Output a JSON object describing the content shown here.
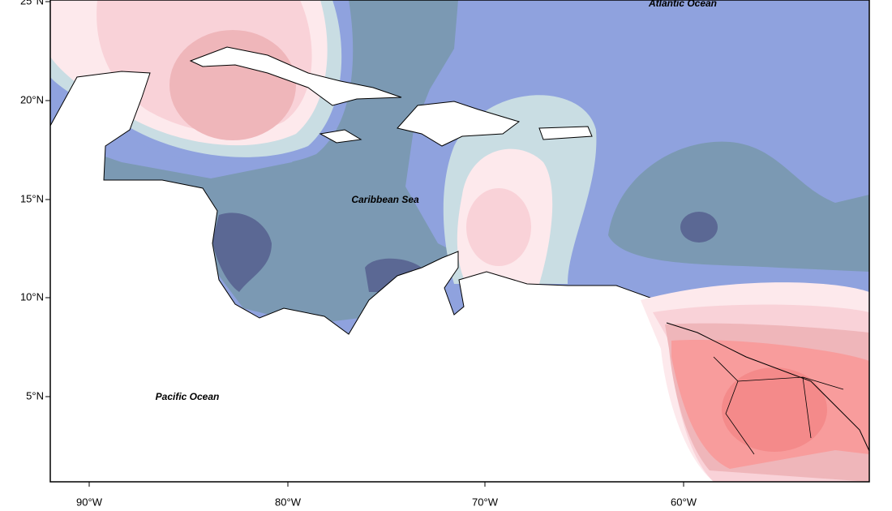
{
  "map": {
    "labels": [
      "Atlantic Ocean",
      "Caribbean Sea",
      "Pacific Ocean"
    ],
    "lat_ticks": [
      "25°N",
      "20°N",
      "15°N",
      "10°N",
      "5°N"
    ],
    "lon_ticks": [
      "90°W",
      "80°W",
      "70°W",
      "60°W"
    ]
  }
}
